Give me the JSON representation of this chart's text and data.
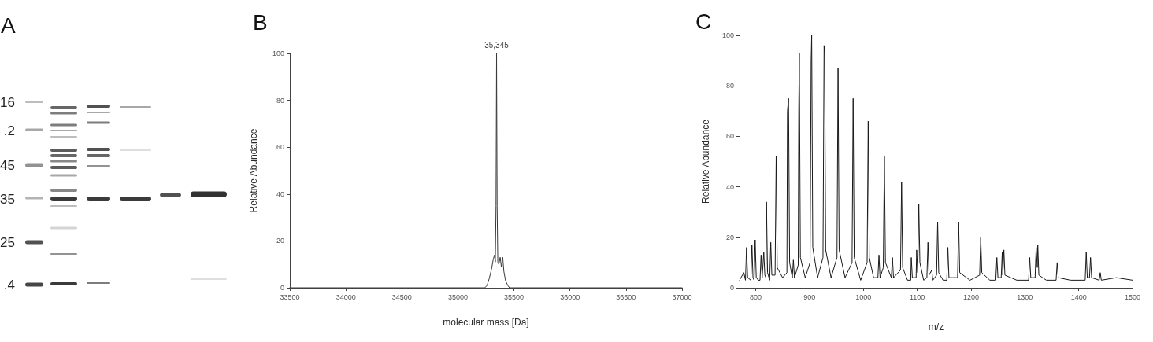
{
  "chart_data": [
    {
      "type": "other",
      "title": "A",
      "annotations": [
        "16",
        ".2",
        "45",
        "35",
        "25",
        ".4"
      ]
    },
    {
      "type": "line",
      "title": "B",
      "xlabel": "molecular mass [Da]",
      "ylabel": "Relative Abundance",
      "x": [
        33500,
        35240,
        35260,
        35280,
        35300,
        35315,
        35326,
        35334,
        35340,
        35345,
        35350,
        35356,
        35365,
        35377,
        35388,
        35400,
        35410,
        35425,
        35445,
        35460,
        37000
      ],
      "series": [
        {
          "color": "#3a3a3a",
          "values": [
            0,
            0,
            1,
            4,
            8,
            12,
            14,
            11,
            35,
            100,
            35,
            11,
            10,
            13,
            9,
            13,
            7,
            3,
            1,
            0,
            0
          ]
        }
      ],
      "xlim": [
        33500,
        37000
      ],
      "xticks": [
        33500,
        34000,
        34500,
        35000,
        35500,
        36000,
        36500,
        37000
      ],
      "ylim": [
        0,
        100
      ],
      "yticks": [
        0,
        20,
        40,
        60,
        80,
        100
      ],
      "annotations": [
        {
          "text": "35,345",
          "x": 35345,
          "y": 100
        }
      ]
    },
    {
      "type": "line",
      "title": "C",
      "xlabel": "m/z",
      "ylabel": "Relative Abundance",
      "x": [
        770,
        778,
        781,
        783,
        785,
        791,
        793,
        795,
        797,
        799,
        801,
        805,
        808,
        810,
        812,
        815,
        817,
        819,
        820,
        822,
        826,
        828,
        830,
        836,
        838,
        840,
        850,
        858,
        859,
        861,
        863,
        868,
        870,
        872,
        879,
        880,
        881,
        883,
        892,
        901,
        903,
        904,
        906,
        915,
        925,
        927,
        928,
        930,
        940,
        951,
        953,
        955,
        966,
        979,
        981,
        983,
        995,
        1007,
        1009,
        1011,
        1019,
        1027,
        1029,
        1031,
        1037,
        1039,
        1041,
        1052,
        1054,
        1056,
        1069,
        1071,
        1073,
        1082,
        1088,
        1089,
        1091,
        1098,
        1099,
        1101,
        1103,
        1105,
        1112,
        1118,
        1120,
        1122,
        1127,
        1129,
        1136,
        1138,
        1140,
        1148,
        1155,
        1157,
        1159,
        1175,
        1177,
        1179,
        1198,
        1216,
        1218,
        1220,
        1235,
        1246,
        1248,
        1250,
        1256,
        1258,
        1259,
        1261,
        1263,
        1285,
        1307,
        1309,
        1311,
        1319,
        1321,
        1323,
        1324,
        1326,
        1340,
        1358,
        1360,
        1362,
        1385,
        1412,
        1414,
        1416,
        1420,
        1422,
        1424,
        1438,
        1440,
        1442,
        1470,
        1500
      ],
      "series": [
        {
          "color": "#1a1a1a",
          "values": [
            3,
            6,
            3,
            16,
            4,
            3,
            17,
            4,
            3,
            19,
            4,
            3,
            3,
            13,
            4,
            14,
            5,
            4,
            34,
            6,
            3,
            18,
            5,
            5,
            52,
            8,
            4,
            6,
            70,
            75,
            10,
            4,
            11,
            4,
            9,
            71,
            93,
            12,
            4,
            10,
            90,
            100,
            16,
            4,
            12,
            96,
            92,
            15,
            4,
            12,
            87,
            15,
            4,
            10,
            75,
            12,
            3,
            10,
            66,
            12,
            4,
            4,
            13,
            4,
            8,
            52,
            10,
            4,
            12,
            4,
            7,
            42,
            8,
            3,
            3,
            12,
            4,
            4,
            15,
            6,
            33,
            10,
            3,
            4,
            18,
            5,
            7,
            3,
            5,
            26,
            6,
            3,
            3,
            16,
            4,
            4,
            26,
            6,
            3,
            5,
            20,
            6,
            3,
            3,
            12,
            4,
            4,
            14,
            5,
            15,
            5,
            3,
            3,
            12,
            4,
            4,
            16,
            8,
            17,
            5,
            3,
            3,
            10,
            4,
            3,
            3,
            14,
            4,
            4,
            12,
            4,
            3,
            6,
            3,
            4,
            3
          ]
        }
      ],
      "xlim": [
        770,
        1500
      ],
      "xticks": [
        800,
        900,
        1000,
        1100,
        1200,
        1300,
        1400,
        1500
      ],
      "ylim": [
        0,
        100
      ],
      "yticks": [
        0,
        20,
        40,
        60,
        80,
        100
      ]
    }
  ]
}
